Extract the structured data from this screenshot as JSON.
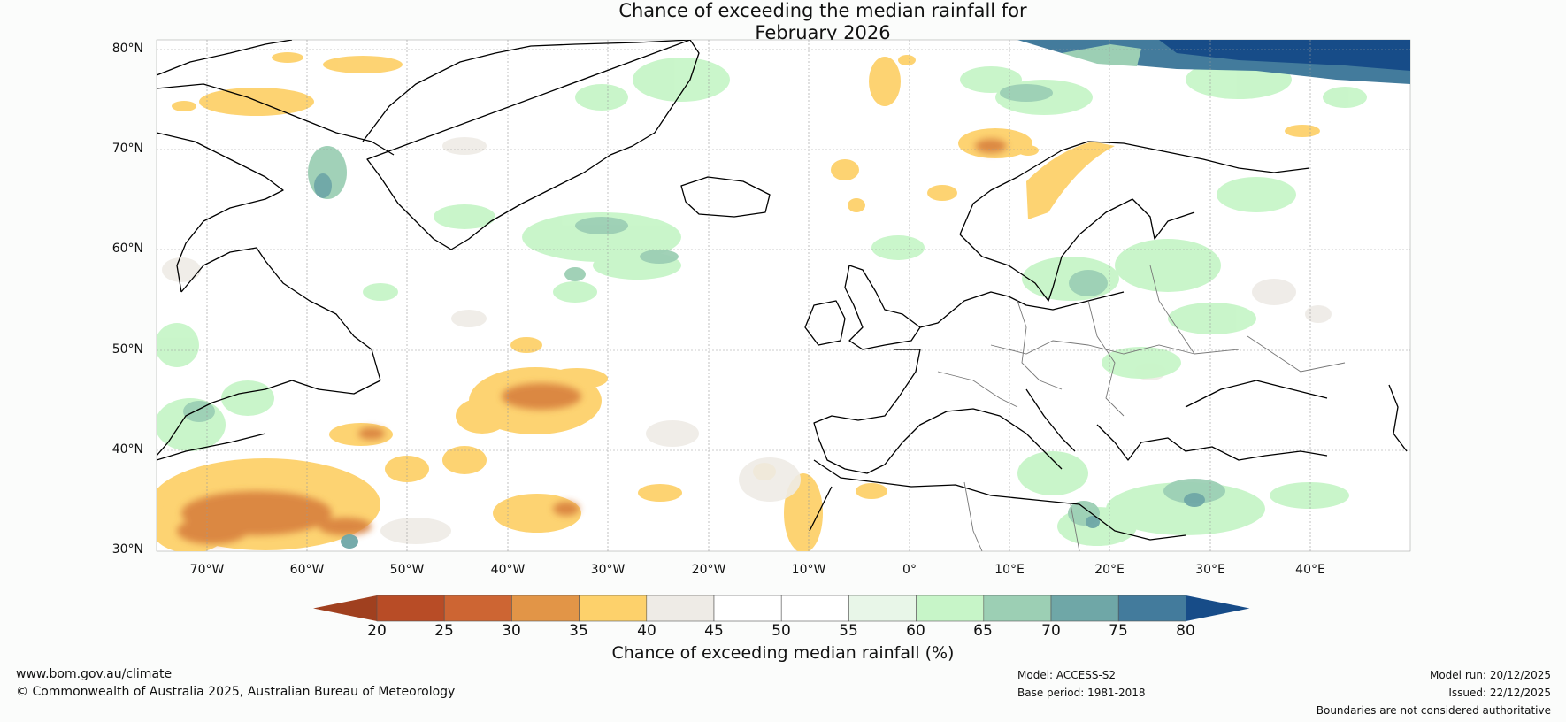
{
  "title": {
    "line1": "Chance of exceeding the median rainfall for",
    "line2": "February 2026"
  },
  "map": {
    "latitude_labels": [
      "80°N",
      "70°N",
      "60°N",
      "50°N",
      "40°N",
      "30°N"
    ],
    "longitude_labels": [
      "70°W",
      "60°W",
      "50°W",
      "40°W",
      "30°W",
      "20°W",
      "10°W",
      "0°",
      "10°E",
      "20°E",
      "30°E",
      "40°E"
    ],
    "lat_range": [
      30,
      81
    ],
    "lon_range": [
      -75,
      50
    ]
  },
  "colorbar": {
    "ticks": [
      "20",
      "25",
      "30",
      "35",
      "40",
      "45",
      "50",
      "55",
      "60",
      "65",
      "70",
      "75",
      "80"
    ],
    "colors": [
      "#a0401f",
      "#b84c26",
      "#cd6533",
      "#e29547",
      "#fdd16b",
      "#eeebe6",
      "#ffffff",
      "#ffffff",
      "#e8f6e8",
      "#c7f5c8",
      "#9ccfb4",
      "#6fa7a7",
      "#437b9c",
      "#174c88"
    ],
    "label": "Chance of exceeding median rainfall (%)"
  },
  "footer": {
    "website": "www.bom.gov.au/climate",
    "copyright": "© Commonwealth of Australia 2025, Australian Bureau of Meteorology",
    "model": "Model: ACCESS-S2",
    "base_period": "Base period: 1981-2018",
    "model_run": "Model run: 20/12/2025",
    "issued": "Issued: 22/12/2025",
    "disclaimer": "Boundaries are not considered authoritative"
  }
}
